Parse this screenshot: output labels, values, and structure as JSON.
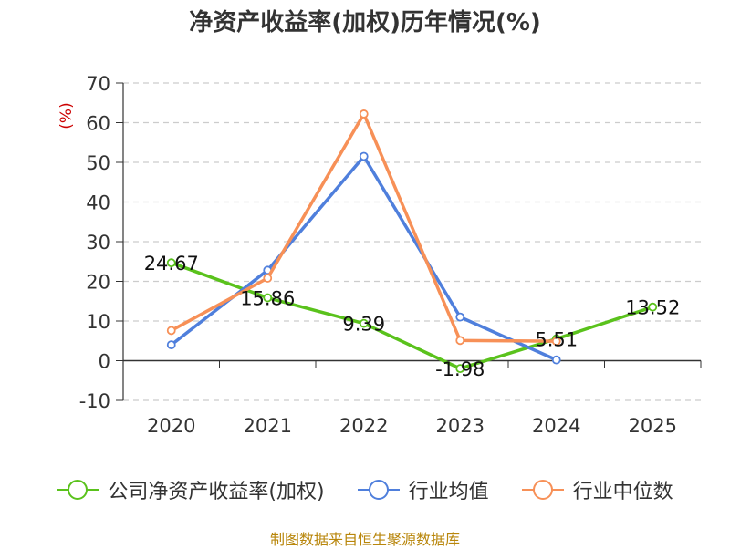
{
  "chart_data": {
    "type": "line",
    "title": "净资产收益率(加权)历年情况(%)",
    "ylabel": "(%)",
    "xlabel": "",
    "categories": [
      "2020",
      "2021",
      "2022",
      "2023",
      "2024",
      "2025"
    ],
    "ylim": [
      -10,
      70
    ],
    "yticks": [
      -10,
      0,
      10,
      20,
      30,
      40,
      50,
      60,
      70
    ],
    "grid": true,
    "legend_position": "bottom",
    "series": [
      {
        "name": "公司净资产收益率(加权)",
        "color": "#5ac21c",
        "values": [
          24.67,
          15.86,
          9.39,
          -1.98,
          5.51,
          13.52
        ],
        "data_labels": [
          "24.67",
          "15.86",
          "9.39",
          "-1.98",
          "5.51",
          "13.52"
        ]
      },
      {
        "name": "行业均值",
        "color": "#4f7fdc",
        "values": [
          4.0,
          22.8,
          51.5,
          11.0,
          0.2,
          null
        ]
      },
      {
        "name": "行业中位数",
        "color": "#f79057",
        "values": [
          7.6,
          20.8,
          62.2,
          5.1,
          4.9,
          null
        ]
      }
    ]
  },
  "source_note": "制图数据来自恒生聚源数据库"
}
